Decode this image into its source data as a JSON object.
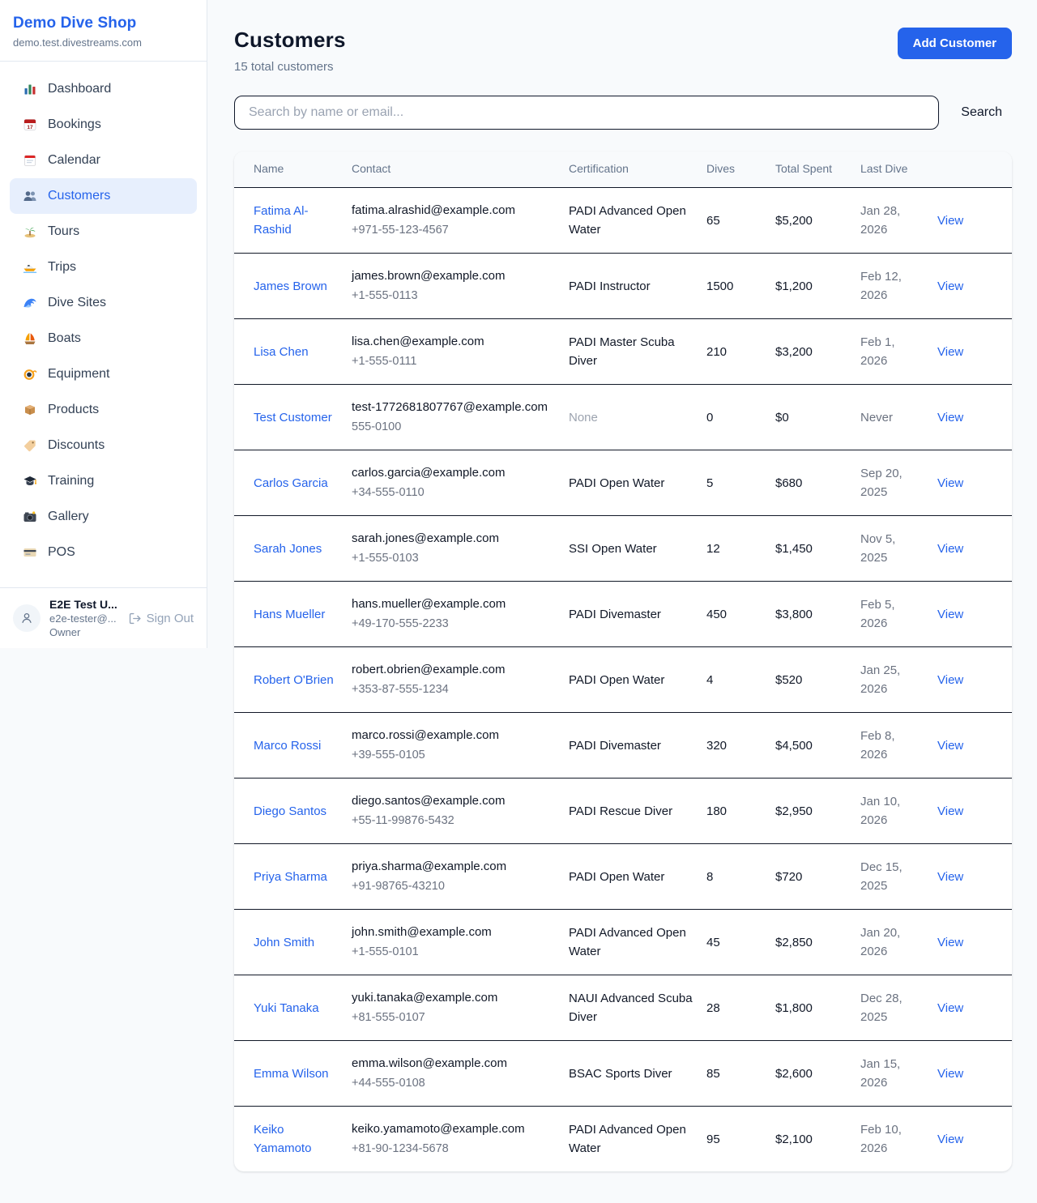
{
  "colors": {
    "accent": "#2563eb",
    "active_nav_bg": "#e7effd",
    "page_bg": "#f8fafc"
  },
  "sidebar": {
    "title": "Demo Dive Shop",
    "subtitle": "demo.test.divestreams.com",
    "items": [
      {
        "icon": "dashboard-icon",
        "label": "Dashboard",
        "active": false
      },
      {
        "icon": "bookings-icon",
        "label": "Bookings",
        "active": false
      },
      {
        "icon": "calendar-icon",
        "label": "Calendar",
        "active": false
      },
      {
        "icon": "customers-icon",
        "label": "Customers",
        "active": true
      },
      {
        "icon": "tours-icon",
        "label": "Tours",
        "active": false
      },
      {
        "icon": "trips-icon",
        "label": "Trips",
        "active": false
      },
      {
        "icon": "dive-sites-icon",
        "label": "Dive Sites",
        "active": false
      },
      {
        "icon": "boats-icon",
        "label": "Boats",
        "active": false
      },
      {
        "icon": "equipment-icon",
        "label": "Equipment",
        "active": false
      },
      {
        "icon": "products-icon",
        "label": "Products",
        "active": false
      },
      {
        "icon": "discounts-icon",
        "label": "Discounts",
        "active": false
      },
      {
        "icon": "training-icon",
        "label": "Training",
        "active": false
      },
      {
        "icon": "gallery-icon",
        "label": "Gallery",
        "active": false
      },
      {
        "icon": "pos-icon",
        "label": "POS",
        "active": false
      }
    ],
    "user": {
      "name": "E2E Test U...",
      "email": "e2e-tester@...",
      "role": "Owner",
      "sign_out_label": "Sign Out"
    }
  },
  "header": {
    "title": "Customers",
    "subtitle": "15 total customers",
    "add_button_label": "Add Customer"
  },
  "search": {
    "placeholder": "Search by name or email...",
    "button_label": "Search"
  },
  "table": {
    "columns": [
      "Name",
      "Contact",
      "Certification",
      "Dives",
      "Total Spent",
      "Last Dive",
      ""
    ],
    "view_label": "View",
    "rows": [
      {
        "name": "Fatima Al-Rashid",
        "email": "fatima.alrashid@example.com",
        "phone": "+971-55-123-4567",
        "certification": "PADI Advanced Open Water",
        "dives": "65",
        "total_spent": "$5,200",
        "last_dive": "Jan 28, 2026"
      },
      {
        "name": "James Brown",
        "email": "james.brown@example.com",
        "phone": "+1-555-0113",
        "certification": "PADI Instructor",
        "dives": "1500",
        "total_spent": "$1,200",
        "last_dive": "Feb 12, 2026"
      },
      {
        "name": "Lisa Chen",
        "email": "lisa.chen@example.com",
        "phone": "+1-555-0111",
        "certification": "PADI Master Scuba Diver",
        "dives": "210",
        "total_spent": "$3,200",
        "last_dive": "Feb 1, 2026"
      },
      {
        "name": "Test Customer",
        "email": "test-1772681807767@example.com",
        "phone": "555-0100",
        "certification": "None",
        "dives": "0",
        "total_spent": "$0",
        "last_dive": "Never"
      },
      {
        "name": "Carlos Garcia",
        "email": "carlos.garcia@example.com",
        "phone": "+34-555-0110",
        "certification": "PADI Open Water",
        "dives": "5",
        "total_spent": "$680",
        "last_dive": "Sep 20, 2025"
      },
      {
        "name": "Sarah Jones",
        "email": "sarah.jones@example.com",
        "phone": "+1-555-0103",
        "certification": "SSI Open Water",
        "dives": "12",
        "total_spent": "$1,450",
        "last_dive": "Nov 5, 2025"
      },
      {
        "name": "Hans Mueller",
        "email": "hans.mueller@example.com",
        "phone": "+49-170-555-2233",
        "certification": "PADI Divemaster",
        "dives": "450",
        "total_spent": "$3,800",
        "last_dive": "Feb 5, 2026"
      },
      {
        "name": "Robert O'Brien",
        "email": "robert.obrien@example.com",
        "phone": "+353-87-555-1234",
        "certification": "PADI Open Water",
        "dives": "4",
        "total_spent": "$520",
        "last_dive": "Jan 25, 2026"
      },
      {
        "name": "Marco Rossi",
        "email": "marco.rossi@example.com",
        "phone": "+39-555-0105",
        "certification": "PADI Divemaster",
        "dives": "320",
        "total_spent": "$4,500",
        "last_dive": "Feb 8, 2026"
      },
      {
        "name": "Diego Santos",
        "email": "diego.santos@example.com",
        "phone": "+55-11-99876-5432",
        "certification": "PADI Rescue Diver",
        "dives": "180",
        "total_spent": "$2,950",
        "last_dive": "Jan 10, 2026"
      },
      {
        "name": "Priya Sharma",
        "email": "priya.sharma@example.com",
        "phone": "+91-98765-43210",
        "certification": "PADI Open Water",
        "dives": "8",
        "total_spent": "$720",
        "last_dive": "Dec 15, 2025"
      },
      {
        "name": "John Smith",
        "email": "john.smith@example.com",
        "phone": "+1-555-0101",
        "certification": "PADI Advanced Open Water",
        "dives": "45",
        "total_spent": "$2,850",
        "last_dive": "Jan 20, 2026"
      },
      {
        "name": "Yuki Tanaka",
        "email": "yuki.tanaka@example.com",
        "phone": "+81-555-0107",
        "certification": "NAUI Advanced Scuba Diver",
        "dives": "28",
        "total_spent": "$1,800",
        "last_dive": "Dec 28, 2025"
      },
      {
        "name": "Emma Wilson",
        "email": "emma.wilson@example.com",
        "phone": "+44-555-0108",
        "certification": "BSAC Sports Diver",
        "dives": "85",
        "total_spent": "$2,600",
        "last_dive": "Jan 15, 2026"
      },
      {
        "name": "Keiko Yamamoto",
        "email": "keiko.yamamoto@example.com",
        "phone": "+81-90-1234-5678",
        "certification": "PADI Advanced Open Water",
        "dives": "95",
        "total_spent": "$2,100",
        "last_dive": "Feb 10, 2026"
      }
    ]
  }
}
